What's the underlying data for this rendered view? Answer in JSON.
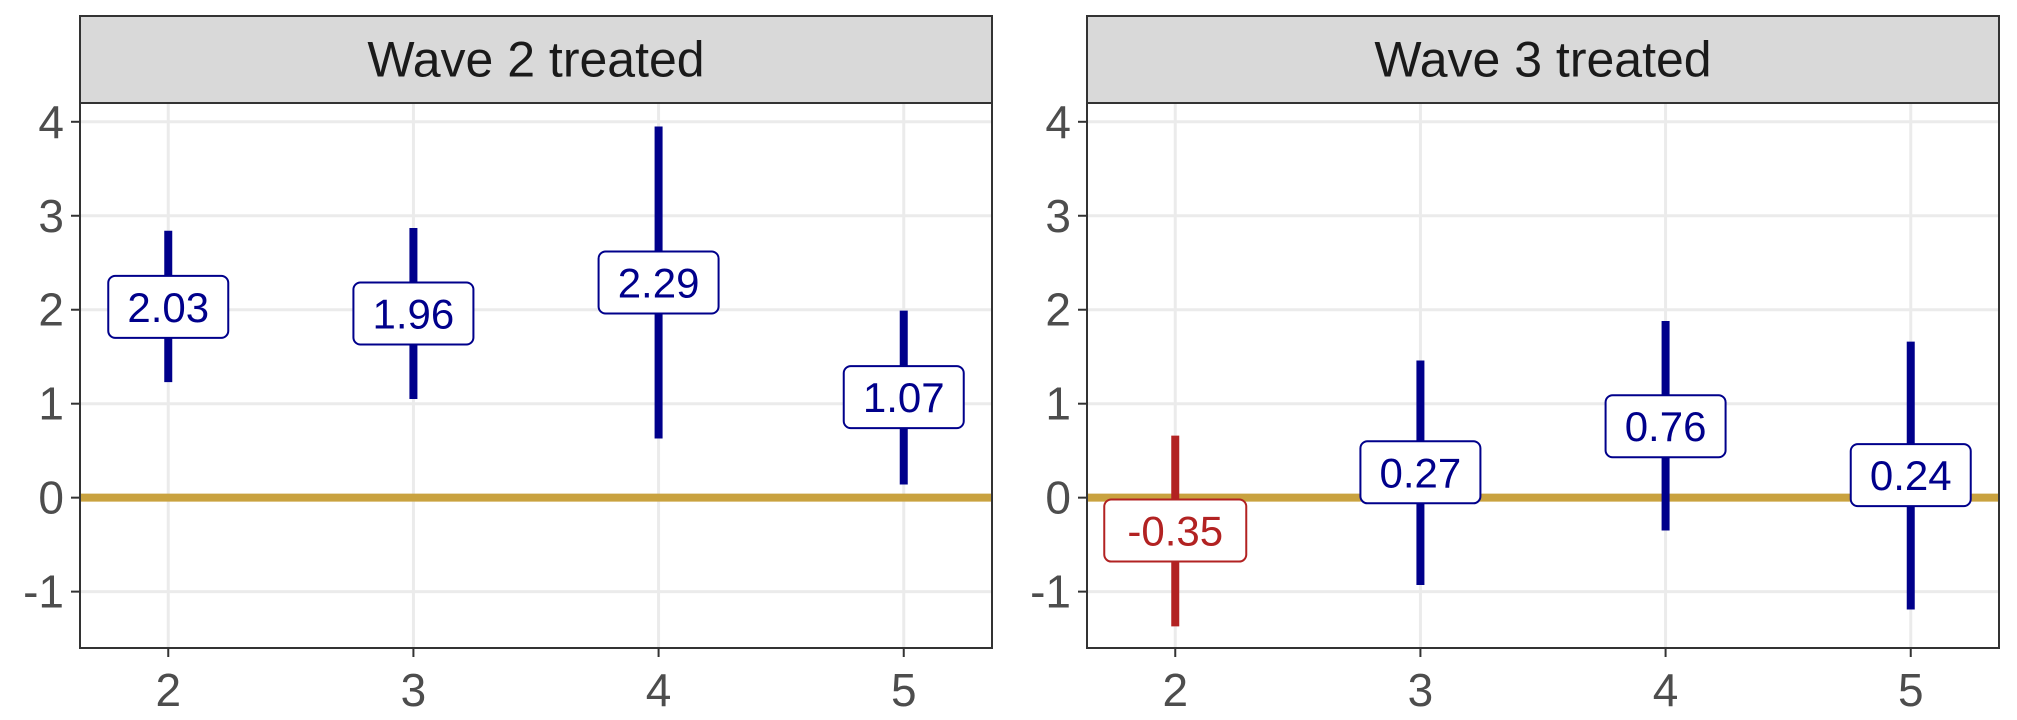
{
  "chart_data": {
    "type": "errorbar",
    "facets": [
      "Wave 2 treated",
      "Wave 3 treated"
    ],
    "x": [
      2,
      3,
      4,
      5
    ],
    "ylim": [
      -1.6,
      4.2
    ],
    "yticks": [
      -1,
      0,
      1,
      2,
      3,
      4
    ],
    "reference_line": 0,
    "grid": true,
    "panels": [
      {
        "title": "Wave 2 treated",
        "points": [
          {
            "x": 2,
            "estimate": 2.03,
            "label": "2.03",
            "lower": 1.23,
            "upper": 2.84
          },
          {
            "x": 3,
            "estimate": 1.96,
            "label": "1.96",
            "lower": 1.05,
            "upper": 2.87
          },
          {
            "x": 4,
            "estimate": 2.29,
            "label": "2.29",
            "lower": 0.63,
            "upper": 3.95
          },
          {
            "x": 5,
            "estimate": 1.07,
            "label": "1.07",
            "lower": 0.14,
            "upper": 1.99
          }
        ]
      },
      {
        "title": "Wave 3 treated",
        "points": [
          {
            "x": 2,
            "estimate": -0.35,
            "label": "-0.35",
            "lower": -1.37,
            "upper": 0.66
          },
          {
            "x": 3,
            "estimate": 0.27,
            "label": "0.27",
            "lower": -0.93,
            "upper": 1.46
          },
          {
            "x": 4,
            "estimate": 0.76,
            "label": "0.76",
            "lower": -0.35,
            "upper": 1.88
          },
          {
            "x": 5,
            "estimate": 0.24,
            "label": "0.24",
            "lower": -1.19,
            "upper": 1.66
          }
        ]
      }
    ],
    "colors": {
      "positive": "#00008b",
      "negative": "#b22222",
      "reference": "#c9a23f",
      "grid": "#ebebeb",
      "strip": "#d9d9d9",
      "border": "#333333"
    }
  }
}
